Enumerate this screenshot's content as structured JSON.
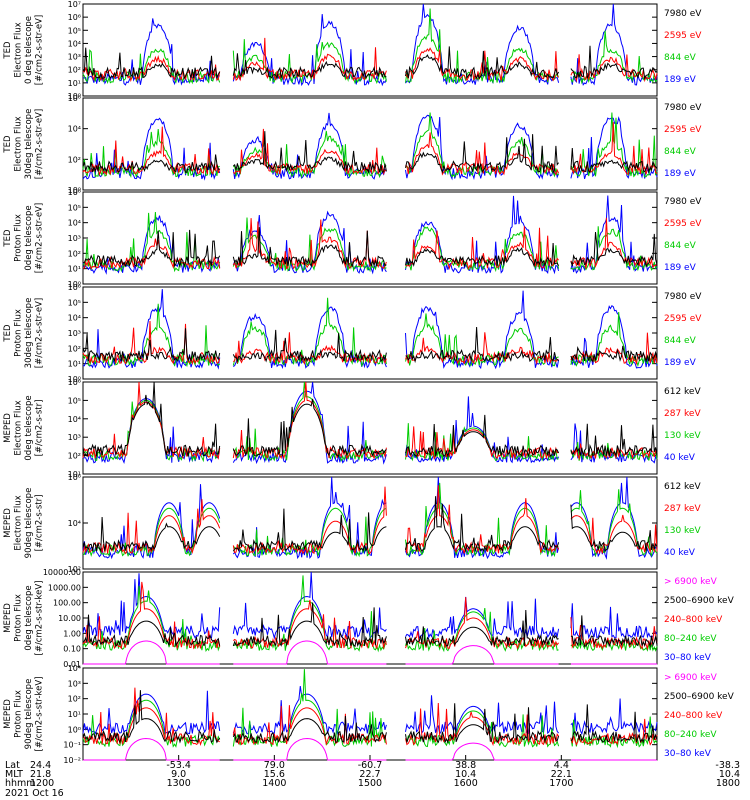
{
  "colors": {
    "blue": "#0000ff",
    "red": "#ff0000",
    "green": "#00cc00",
    "black": "#000000",
    "magenta": "#ff00ff"
  },
  "chart_data": {
    "type": "line",
    "panels": [
      {
        "ylabel": [
          "TED",
          "Electron Flux",
          "0 deg telescope",
          "[#/cm2-s-str-eV]"
        ],
        "yticks": [
          "10⁰",
          "10¹",
          "10²",
          "10³",
          "10⁴",
          "10⁵",
          "10⁶",
          "10⁷"
        ],
        "ylim_log": [
          0,
          7
        ],
        "legend": [
          {
            "text": "7980 eV",
            "color": "black"
          },
          {
            "text": "2595 eV",
            "color": "red"
          },
          {
            "text": "844 eV",
            "color": "green"
          },
          {
            "text": "189 eV",
            "color": "blue"
          }
        ],
        "peaks": {
          "blue": [
            5.4,
            3.9,
            5.5,
            6.0,
            5.2
          ],
          "green": [
            3.5,
            2.9,
            3.9,
            4.5,
            3.6
          ],
          "red": [
            2.8,
            2.4,
            3.0,
            3.5,
            2.8
          ],
          "black": [
            2.4,
            2.0,
            2.5,
            3.0,
            2.4
          ]
        },
        "profile": "ted-e"
      },
      {
        "ylabel": [
          "TED",
          "Electron Flux",
          "30deg telescope",
          "[#/cm2-s-str-eV]"
        ],
        "yticks": [
          "10⁰",
          "10²",
          "10⁴",
          "10⁶"
        ],
        "ylim_log": [
          0,
          7
        ],
        "legend": [
          {
            "text": "7980 eV",
            "color": "black"
          },
          {
            "text": "2595 eV",
            "color": "red"
          },
          {
            "text": "844 eV",
            "color": "green"
          },
          {
            "text": "189 eV",
            "color": "blue"
          }
        ],
        "peaks": {
          "blue": [
            5.4,
            3.8,
            5.0,
            5.6,
            4.9
          ],
          "green": [
            3.6,
            3.0,
            3.9,
            4.4,
            3.6
          ],
          "red": [
            2.8,
            2.6,
            3.0,
            3.4,
            2.8
          ],
          "black": [
            2.2,
            2.2,
            2.4,
            2.8,
            2.3
          ]
        },
        "profile": "ted-e"
      },
      {
        "ylabel": [
          "TED",
          "Proton Flux",
          "0deg telescope",
          "[#/cm2-s-str-eV]"
        ],
        "yticks": [
          "10⁰",
          "10¹",
          "10²",
          "10³",
          "10⁴",
          "10⁵",
          "10⁶"
        ],
        "ylim_log": [
          0,
          6
        ],
        "legend": [
          {
            "text": "7980 eV",
            "color": "black"
          },
          {
            "text": "2595 eV",
            "color": "red"
          },
          {
            "text": "844 eV",
            "color": "green"
          },
          {
            "text": "189 eV",
            "color": "blue"
          }
        ],
        "peaks": {
          "blue": [
            4.3,
            3.5,
            4.5,
            4.0,
            4.1
          ],
          "green": [
            3.4,
            3.0,
            3.6,
            3.6,
            3.3
          ],
          "red": [
            2.6,
            2.2,
            2.9,
            2.5,
            2.6
          ],
          "black": [
            2.2,
            1.9,
            2.5,
            2.2,
            2.2
          ]
        },
        "profile": "ted-p"
      },
      {
        "ylabel": [
          "TED",
          "Proton Flux",
          "30deg telescope",
          "[#/cm2-s-str-eV]"
        ],
        "yticks": [
          "10⁰",
          "10¹",
          "10²",
          "10³",
          "10⁴",
          "10⁵",
          "10⁶"
        ],
        "ylim_log": [
          0,
          6
        ],
        "legend": [
          {
            "text": "7980 eV",
            "color": "black"
          },
          {
            "text": "2595 eV",
            "color": "red"
          },
          {
            "text": "844 eV",
            "color": "green"
          },
          {
            "text": "189 eV",
            "color": "blue"
          }
        ],
        "peaks": {
          "blue": [
            4.6,
            4.1,
            4.6,
            4.6,
            4.2
          ],
          "green": [
            3.3,
            3.3,
            3.5,
            3.5,
            3.2
          ],
          "red": [
            1.9,
            1.8,
            2.0,
            2.0,
            1.9
          ],
          "black": [
            1.4,
            1.2,
            1.5,
            1.5,
            1.4
          ]
        },
        "profile": "ted-p"
      },
      {
        "ylabel": [
          "MEPED",
          "Electron Flux",
          "0deg telescope",
          "[#/cm2-s-str]"
        ],
        "yticks": [
          "10¹",
          "10²",
          "10³",
          "10⁴",
          "10⁵",
          "10⁶"
        ],
        "ylim_log": [
          1,
          6
        ],
        "legend": [
          {
            "text": "612 keV",
            "color": "black"
          },
          {
            "text": "287 keV",
            "color": "red"
          },
          {
            "text": "130 keV",
            "color": "green"
          },
          {
            "text": "40 keV",
            "color": "blue"
          }
        ],
        "peaks": {
          "blue": [
            5.1,
            5.5,
            3.6
          ],
          "green": [
            5.0,
            5.2,
            3.5
          ],
          "red": [
            4.9,
            5.0,
            3.4
          ],
          "black": [
            4.8,
            4.8,
            3.3
          ]
        },
        "profile": "mep-e0"
      },
      {
        "ylabel": [
          "MEPED",
          "Electron Flux",
          "90deg telescope",
          "[#/cm2-s-str]"
        ],
        "yticks": [
          "10²",
          "10⁴",
          "10⁶"
        ],
        "ylim_log": [
          1,
          6
        ],
        "legend": [
          {
            "text": "612 keV",
            "color": "black"
          },
          {
            "text": "287 keV",
            "color": "red"
          },
          {
            "text": "130 keV",
            "color": "green"
          },
          {
            "text": "40 keV",
            "color": "blue"
          }
        ],
        "peaks": {
          "blue": [
            4.6,
            4.6,
            4.6,
            4.6,
            4.6
          ],
          "green": [
            4.3,
            4.3,
            4.3,
            4.3,
            4.3
          ],
          "red": [
            3.9,
            3.9,
            3.6,
            3.9,
            3.9
          ],
          "black": [
            3.3,
            3.3,
            3.0,
            3.3,
            3.3
          ]
        },
        "profile": "mep-e90"
      },
      {
        "ylabel": [
          "MEPED",
          "Proton Flux",
          "0deg telescope",
          "[#/cm2-s-str-keV]"
        ],
        "yticks": [
          "0.01",
          "0.10",
          "1.00",
          "10.00",
          "100.00",
          "1000.00",
          "10000.00"
        ],
        "ylim_log": [
          -2,
          4
        ],
        "legend": [
          {
            "text": "> 6900 keV",
            "color": "magenta"
          },
          {
            "text": "2500–6900 keV",
            "color": "black"
          },
          {
            "text": "240–800 keV",
            "color": "red"
          },
          {
            "text": "80–240 keV",
            "color": "green"
          },
          {
            "text": "30–80 keV",
            "color": "blue"
          }
        ],
        "peaks": {
          "blue": [
            2.4,
            2.4,
            1.6
          ],
          "green": [
            2.1,
            2.1,
            1.4
          ],
          "red": [
            1.6,
            1.6,
            1.0
          ],
          "black": [
            0.8,
            0.8,
            0.4
          ],
          "magenta": [
            -0.5,
            -0.5,
            -0.8
          ]
        },
        "profile": "mep-p"
      },
      {
        "ylabel": [
          "MEPED",
          "Proton Flux",
          "90deg telescope",
          "[#/cm2-s-str-keV]"
        ],
        "yticks": [
          "10⁻²",
          "10⁻¹",
          "10⁰",
          "10¹",
          "10²",
          "10³",
          "10⁴"
        ],
        "ylim_log": [
          -2,
          4
        ],
        "legend": [
          {
            "text": "> 6900 keV",
            "color": "magenta"
          },
          {
            "text": "2500–6900 keV",
            "color": "black"
          },
          {
            "text": "240–800 keV",
            "color": "red"
          },
          {
            "text": "80–240 keV",
            "color": "green"
          },
          {
            "text": "30–80 keV",
            "color": "blue"
          }
        ],
        "peaks": {
          "blue": [
            2.3,
            2.3,
            1.5
          ],
          "green": [
            1.9,
            1.9,
            1.2
          ],
          "red": [
            1.4,
            1.4,
            0.8
          ],
          "black": [
            0.7,
            0.7,
            0.3
          ],
          "magenta": [
            -0.6,
            -0.6,
            -0.9
          ]
        },
        "profile": "mep-p"
      }
    ],
    "x_axis": {
      "labels": [
        "Lat",
        "MLT",
        "hhmm",
        "2021 Oct 16"
      ],
      "columns": [
        {
          "lat": "24.4",
          "mlt": "21.8",
          "hhmm": "1200"
        },
        {
          "lat": "-53.4",
          "mlt": "9.0",
          "hhmm": "1300"
        },
        {
          "lat": "79.0",
          "mlt": "15.6",
          "hhmm": "1400"
        },
        {
          "lat": "-60.7",
          "mlt": "22.7",
          "hhmm": "1500"
        },
        {
          "lat": "38.8",
          "mlt": "10.4",
          "hhmm": "1600"
        },
        {
          "lat": "4.4",
          "mlt": "22.1",
          "hhmm": "1700"
        },
        {
          "lat": "-38.3",
          "mlt": "10.4",
          "hhmm": "1800"
        }
      ]
    }
  }
}
